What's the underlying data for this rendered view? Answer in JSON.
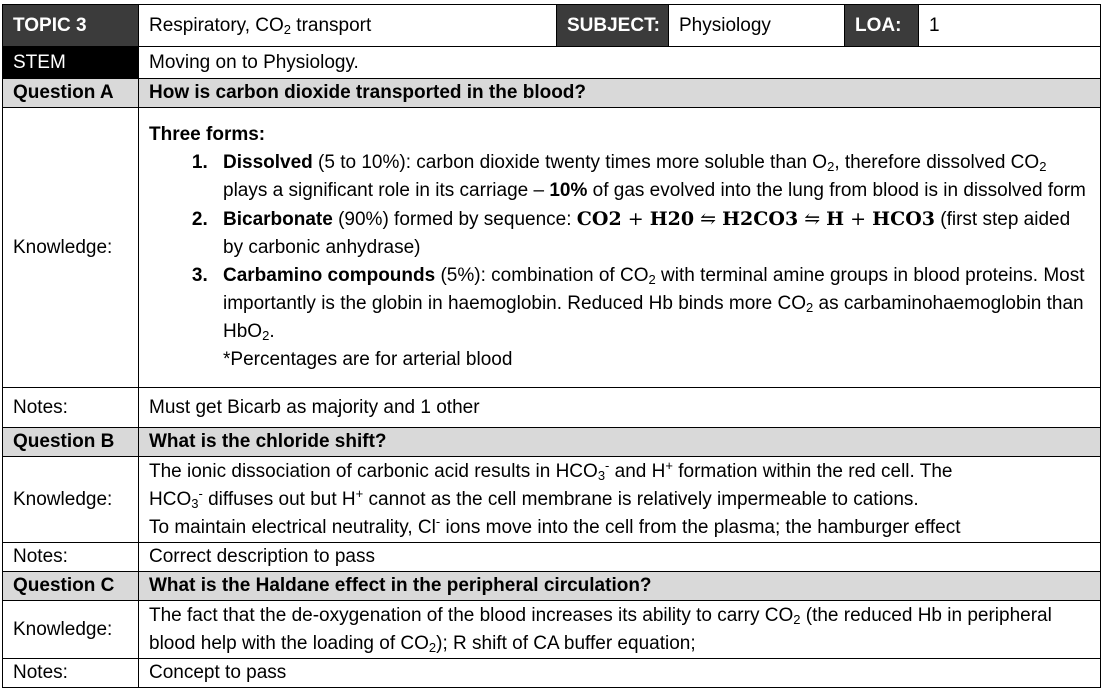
{
  "header": {
    "topic_label": "TOPIC 3",
    "topic_prefix": "Respiratory, CO",
    "topic_sub": "2",
    "topic_suffix": " transport",
    "subject_label": "SUBJECT:",
    "subject_value": "Physiology",
    "loa_label": "LOA:",
    "loa_value": "1"
  },
  "stem": {
    "label": "STEM",
    "text": "Moving on to Physiology."
  },
  "question_a": {
    "label": "Question A",
    "text": "How is carbon dioxide transported in the blood?",
    "knowledge_label": "Knowledge:",
    "intro": "Three forms:",
    "item1": {
      "title": "Dissolved",
      "p1": " (5 to 10%): carbon dioxide twenty times more soluble than O",
      "s1": "2",
      "p2": ", therefore dissolved CO",
      "s2": "2",
      "p3": " plays a significant role in its carriage – ",
      "bold": "10%",
      "p4": " of gas evolved into the lung from blood is in dissolved form"
    },
    "item2": {
      "title": "Bicarbonate",
      "p1": " (90%) formed by sequence: ",
      "eq1": "CO2",
      "plus1": " + ",
      "eq2": "H20",
      "arrow1": " ⇋ ",
      "eq3": "H2CO3",
      "arrow2": " ⇋ ",
      "eq4": "H",
      "plus2": " + ",
      "eq5": "HCO3",
      "p2": " (first step aided by carbonic anhydrase)"
    },
    "item3": {
      "title": "Carbamino compounds",
      "p1": " (5%): combination of CO",
      "s1": "2",
      "p2": " with terminal amine groups in blood proteins. Most importantly is the globin in haemoglobin. Reduced Hb binds more CO",
      "s2": "2",
      "p3": " as carbaminohaemoglobin than HbO",
      "s3": "2",
      "p4": ".",
      "footnote": "*Percentages are for arterial blood"
    },
    "notes_label": "Notes:",
    "notes": "Must get Bicarb as majority and 1 other"
  },
  "question_b": {
    "label": "Question B",
    "text": "What is the chloride shift?",
    "knowledge_label": "Knowledge:",
    "l1a": "The ionic dissociation of carbonic acid results in HCO",
    "l1s": "3",
    "l1sup": "-",
    "l1b": " and H",
    "l1sup2": "+",
    "l1c": " formation within the red cell. The",
    "l2a": "HCO",
    "l2s": "3",
    "l2sup": "-",
    "l2b": " diffuses out but H",
    "l2sup2": "+",
    "l2c": " cannot as the cell membrane is relatively impermeable to cations.",
    "l3a": "To maintain electrical neutrality, Cl",
    "l3sup": "-",
    "l3b": " ions move into the cell from the plasma; the hamburger effect",
    "notes_label": "Notes:",
    "notes": "Correct description to pass"
  },
  "question_c": {
    "label": "Question C",
    "text": "What is the Haldane effect in the peripheral circulation?",
    "knowledge_label": "Knowledge:",
    "p1": "The fact that the de-oxygenation of the blood increases its ability to carry CO",
    "s1": "2",
    "p2": " (the reduced Hb in peripheral blood help with the loading of CO",
    "s2": "2",
    "p3": "); R shift of CA buffer equation;",
    "notes_label": "Notes:",
    "notes": "Concept to pass"
  }
}
